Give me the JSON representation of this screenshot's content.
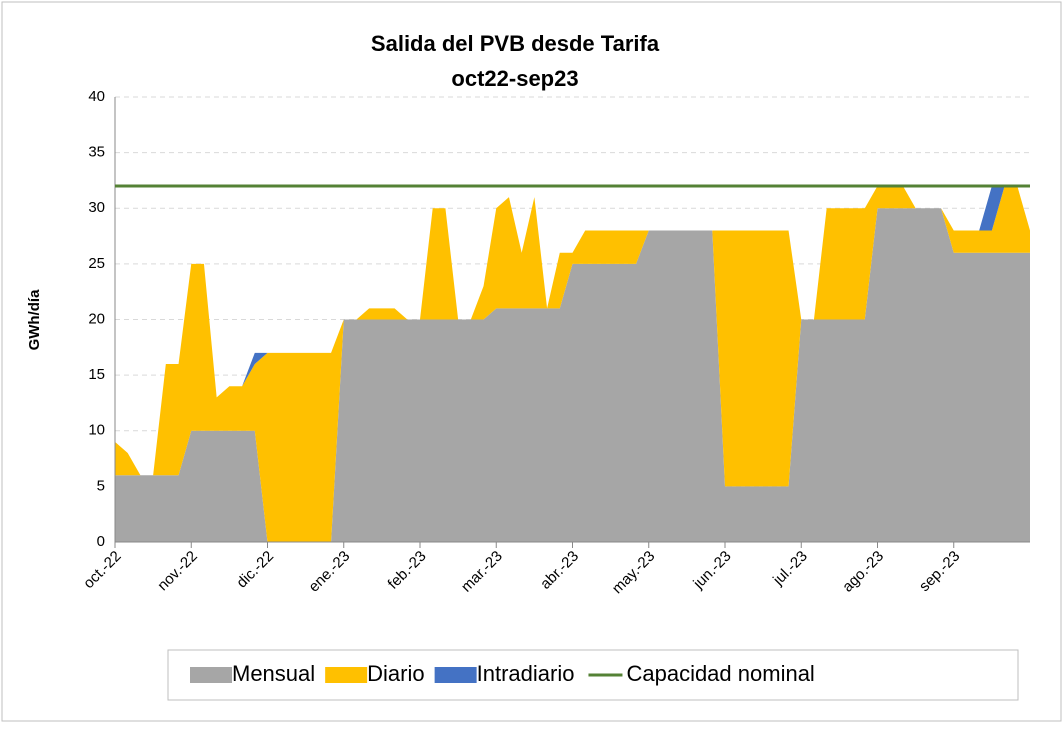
{
  "chart_data": {
    "type": "stacked_area",
    "title": "Salida del PVB desde Tarifa",
    "subtitle": "oct22-sep23",
    "y_label": "GWh/día",
    "categories": [
      "oct.-22",
      null,
      null,
      null,
      null,
      null,
      "nov.-22",
      null,
      null,
      null,
      null,
      null,
      "dic.-22",
      null,
      null,
      null,
      null,
      null,
      "ene.-23",
      null,
      null,
      null,
      null,
      null,
      "feb.-23",
      null,
      null,
      null,
      null,
      null,
      "mar.-23",
      null,
      null,
      null,
      null,
      null,
      "abr.-23",
      null,
      null,
      null,
      null,
      null,
      "may.-23",
      null,
      null,
      null,
      null,
      null,
      "jun.-23",
      null,
      null,
      null,
      null,
      null,
      "jul.-23",
      null,
      null,
      null,
      null,
      null,
      "ago.-23",
      null,
      null,
      null,
      null,
      null,
      "sep.-23",
      null,
      null,
      null,
      null,
      null,
      null
    ],
    "series": [
      {
        "name": "Mensual",
        "color": "#a6a6a6",
        "values": [
          6,
          6,
          6,
          6,
          6,
          6,
          10,
          10,
          10,
          10,
          10,
          10,
          0,
          0,
          0,
          0,
          0,
          0,
          20,
          20,
          20,
          20,
          20,
          20,
          20,
          20,
          20,
          20,
          20,
          20,
          21,
          21,
          21,
          21,
          21,
          21,
          25,
          25,
          25,
          25,
          25,
          25,
          28,
          28,
          28,
          28,
          28,
          28,
          5,
          5,
          5,
          5,
          5,
          5,
          20,
          20,
          20,
          20,
          20,
          20,
          30,
          30,
          30,
          30,
          30,
          30,
          26,
          26,
          26,
          26,
          26,
          26,
          26
        ]
      },
      {
        "name": "Diario",
        "color": "#ffc000",
        "values": [
          3,
          2,
          0,
          0,
          10,
          10,
          15,
          15,
          3,
          4,
          4,
          6,
          17,
          17,
          17,
          17,
          17,
          17,
          0,
          0,
          1,
          1,
          1,
          0,
          0,
          10,
          10,
          0,
          0,
          3,
          9,
          10,
          5,
          10,
          0,
          5,
          1,
          3,
          3,
          3,
          3,
          3,
          0,
          0,
          0,
          0,
          0,
          0,
          23,
          23,
          23,
          23,
          23,
          23,
          0,
          0,
          10,
          10,
          10,
          10,
          2,
          2,
          2,
          0,
          0,
          0,
          2,
          2,
          2,
          2,
          6,
          6,
          2
        ]
      },
      {
        "name": "Intradiario",
        "color": "#4472c4",
        "values": [
          0,
          0,
          0,
          0,
          0,
          0,
          0,
          0,
          0,
          0,
          0,
          1,
          0,
          0,
          0,
          0,
          0,
          0,
          0,
          0,
          0,
          0,
          0,
          0,
          0,
          0,
          0,
          0,
          0,
          0,
          0,
          0,
          0,
          0,
          0,
          0,
          0,
          0,
          0,
          0,
          0,
          0,
          0,
          0,
          0,
          0,
          0,
          0,
          0,
          0,
          0,
          0,
          0,
          0,
          0,
          0,
          0,
          0,
          0,
          0,
          0,
          0,
          0,
          0,
          0,
          0,
          0,
          0,
          0,
          4,
          0,
          0,
          0
        ]
      }
    ],
    "reference_lines": [
      {
        "name": "Capacidad nominal",
        "color": "#548235",
        "value": 32
      }
    ],
    "ylim": [
      0,
      40
    ],
    "yticks": [
      0,
      5,
      10,
      15,
      20,
      25,
      30,
      35,
      40
    ],
    "grid": true,
    "legend": "bottom"
  }
}
